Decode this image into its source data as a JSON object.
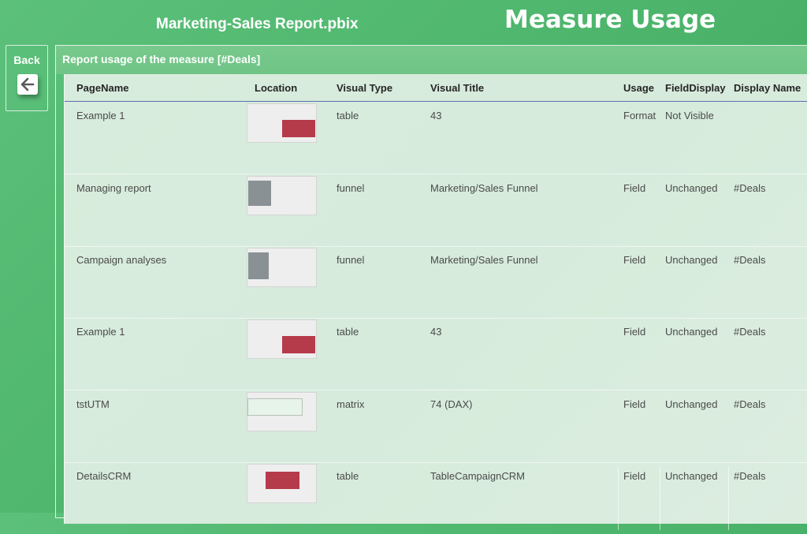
{
  "header": {
    "file_name": "Marketing-Sales Report.pbix",
    "page_title": "Measure Usage"
  },
  "back_button": {
    "label": "Back",
    "icon": "arrow-left-icon"
  },
  "panel": {
    "title": "Report usage of the measure [#Deals]"
  },
  "table": {
    "columns": [
      "PageName",
      "Location",
      "Visual Type",
      "Visual Title",
      "Usage",
      "FieldDisplay",
      "Display Name"
    ],
    "rows": [
      {
        "page_name": "Example 1",
        "visual_type": "table",
        "visual_title": "43",
        "usage": "Format",
        "field_display": "Not Visible",
        "display_name": "",
        "location_color": "#b53a4a"
      },
      {
        "page_name": "Managing report",
        "visual_type": "funnel",
        "visual_title": "Marketing/Sales Funnel",
        "usage": "Field",
        "field_display": "Unchanged",
        "display_name": "#Deals",
        "location_color": "#8a9194"
      },
      {
        "page_name": "Campaign analyses",
        "visual_type": "funnel",
        "visual_title": "Marketing/Sales Funnel",
        "usage": "Field",
        "field_display": "Unchanged",
        "display_name": "#Deals",
        "location_color": "#8a9194"
      },
      {
        "page_name": "Example 1",
        "visual_type": "table",
        "visual_title": "43",
        "usage": "Field",
        "field_display": "Unchanged",
        "display_name": "#Deals",
        "location_color": "#b53a4a"
      },
      {
        "page_name": "tstUTM",
        "visual_type": "matrix",
        "visual_title": "74 (DAX)",
        "usage": "Field",
        "field_display": "Unchanged",
        "display_name": "#Deals",
        "location_color": "#e6f4ea"
      },
      {
        "page_name": "DetailsCRM",
        "visual_type": "table",
        "visual_title": "TableCampaignCRM",
        "usage": "Field",
        "field_display": "Unchanged",
        "display_name": "#Deals",
        "location_color": "#b53a4a"
      }
    ]
  }
}
